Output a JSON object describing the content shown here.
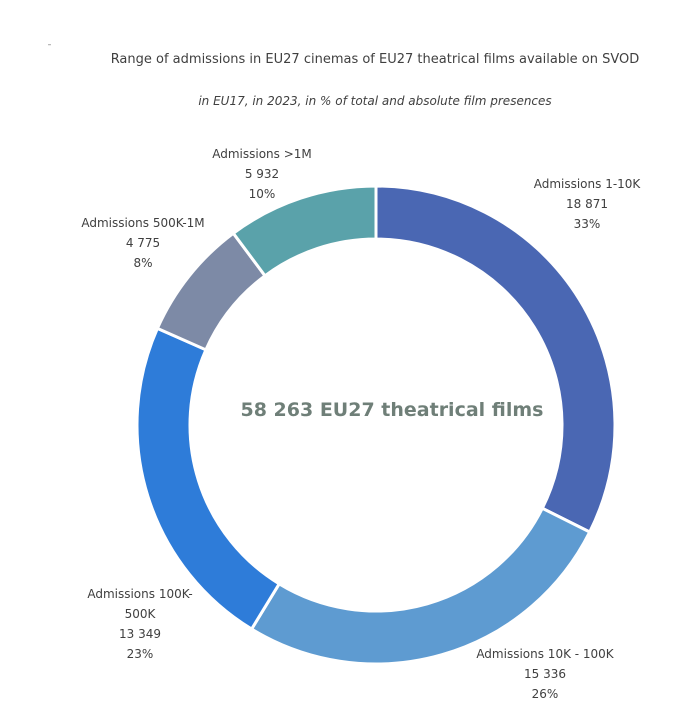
{
  "chart_data": {
    "type": "pie",
    "subtype": "donut",
    "title": "Range of admissions in EU27 cinemas of EU27 theatrical films available on SVOD",
    "subtitle": "in EU17, in 2023, in % of total and absolute film presences",
    "center_label": "58 263 EU27 theatrical films",
    "slices": [
      {
        "label": "Admissions 1-10K",
        "label_lines": [
          "Admissions 1-10K"
        ],
        "value": 18871,
        "value_label": "18 871",
        "percent": 33,
        "percent_label": "33%",
        "color": "#4a67b3"
      },
      {
        "label": "Admissions 10K - 100K",
        "label_lines": [
          "Admissions 10K - 100K"
        ],
        "value": 15336,
        "value_label": "15 336",
        "percent": 26,
        "percent_label": "26%",
        "color": "#5e9bd1"
      },
      {
        "label": "Admissions 100K-500K",
        "label_lines": [
          "Admissions 100K-",
          "500K"
        ],
        "value": 13349,
        "value_label": "13 349",
        "percent": 23,
        "percent_label": "23%",
        "color": "#2e7cd9"
      },
      {
        "label": "Admissions 500K-1M",
        "label_lines": [
          "Admissions 500K-1M"
        ],
        "value": 4775,
        "value_label": "4 775",
        "percent": 8,
        "percent_label": "8%",
        "color": "#7d8aa6"
      },
      {
        "label": "Admissions >1M",
        "label_lines": [
          "Admissions >1M"
        ],
        "value": 5932,
        "value_label": "5 932",
        "percent": 10,
        "percent_label": "10%",
        "color": "#5aa2aa"
      }
    ],
    "legend": "none"
  }
}
